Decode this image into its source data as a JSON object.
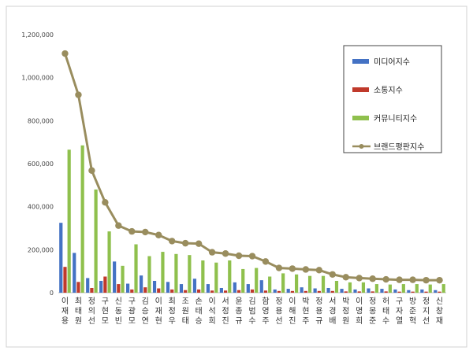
{
  "chart_data": {
    "type": "bar",
    "categories": [
      "이재용",
      "최태원",
      "정의선",
      "구현모",
      "신동빈",
      "구광모",
      "김승연",
      "이재현",
      "최정우",
      "조원태",
      "손태승",
      "이석희",
      "서정진",
      "윤종규",
      "김범수",
      "함영주",
      "정용선",
      "이해진",
      "박현주",
      "정용규",
      "서경배",
      "박정원",
      "이명희",
      "정몽준",
      "허태수",
      "구자열",
      "방준혁",
      "정지선",
      "신창재"
    ],
    "series": [
      {
        "name": "미디어지수",
        "color": "#4472c4",
        "values": [
          325000,
          185000,
          68000,
          55000,
          145000,
          42000,
          80000,
          55000,
          50000,
          40000,
          65000,
          40000,
          22000,
          48000,
          40000,
          58000,
          15000,
          18000,
          25000,
          20000,
          22000,
          18000,
          15000,
          20000,
          18000,
          15000,
          12000,
          15000,
          12000
        ]
      },
      {
        "name": "소통지수",
        "color": "#c0392b",
        "values": [
          120000,
          50000,
          22000,
          75000,
          40000,
          15000,
          25000,
          20000,
          15000,
          12000,
          15000,
          10000,
          10000,
          12000,
          15000,
          10000,
          8000,
          8000,
          8000,
          8000,
          8000,
          6000,
          6000,
          6000,
          6000,
          5000,
          5000,
          5000,
          5000
        ]
      },
      {
        "name": "커뮤니티지수",
        "color": "#8fc04d",
        "values": [
          665000,
          685000,
          480000,
          285000,
          125000,
          225000,
          170000,
          190000,
          180000,
          175000,
          150000,
          140000,
          150000,
          110000,
          115000,
          75000,
          90000,
          85000,
          78000,
          78000,
          55000,
          48000,
          48000,
          40000,
          38000,
          40000,
          40000,
          38000,
          40000
        ]
      },
      {
        "name": "브랜드평판지수",
        "color": "#998d5e",
        "type": "line",
        "values": [
          1112000,
          920000,
          568000,
          420000,
          312000,
          285000,
          282000,
          268000,
          240000,
          230000,
          228000,
          188000,
          182000,
          172000,
          170000,
          145000,
          115000,
          112000,
          108000,
          105000,
          85000,
          72000,
          68000,
          65000,
          62000,
          60000,
          60000,
          58000,
          58000
        ]
      }
    ],
    "ylim": [
      0,
      1200000
    ],
    "yticks": [
      "0",
      "200,000",
      "400,000",
      "600,000",
      "800,000",
      "1,000,000",
      "1,200,000"
    ],
    "legend_position": "top-right",
    "grid": false
  }
}
